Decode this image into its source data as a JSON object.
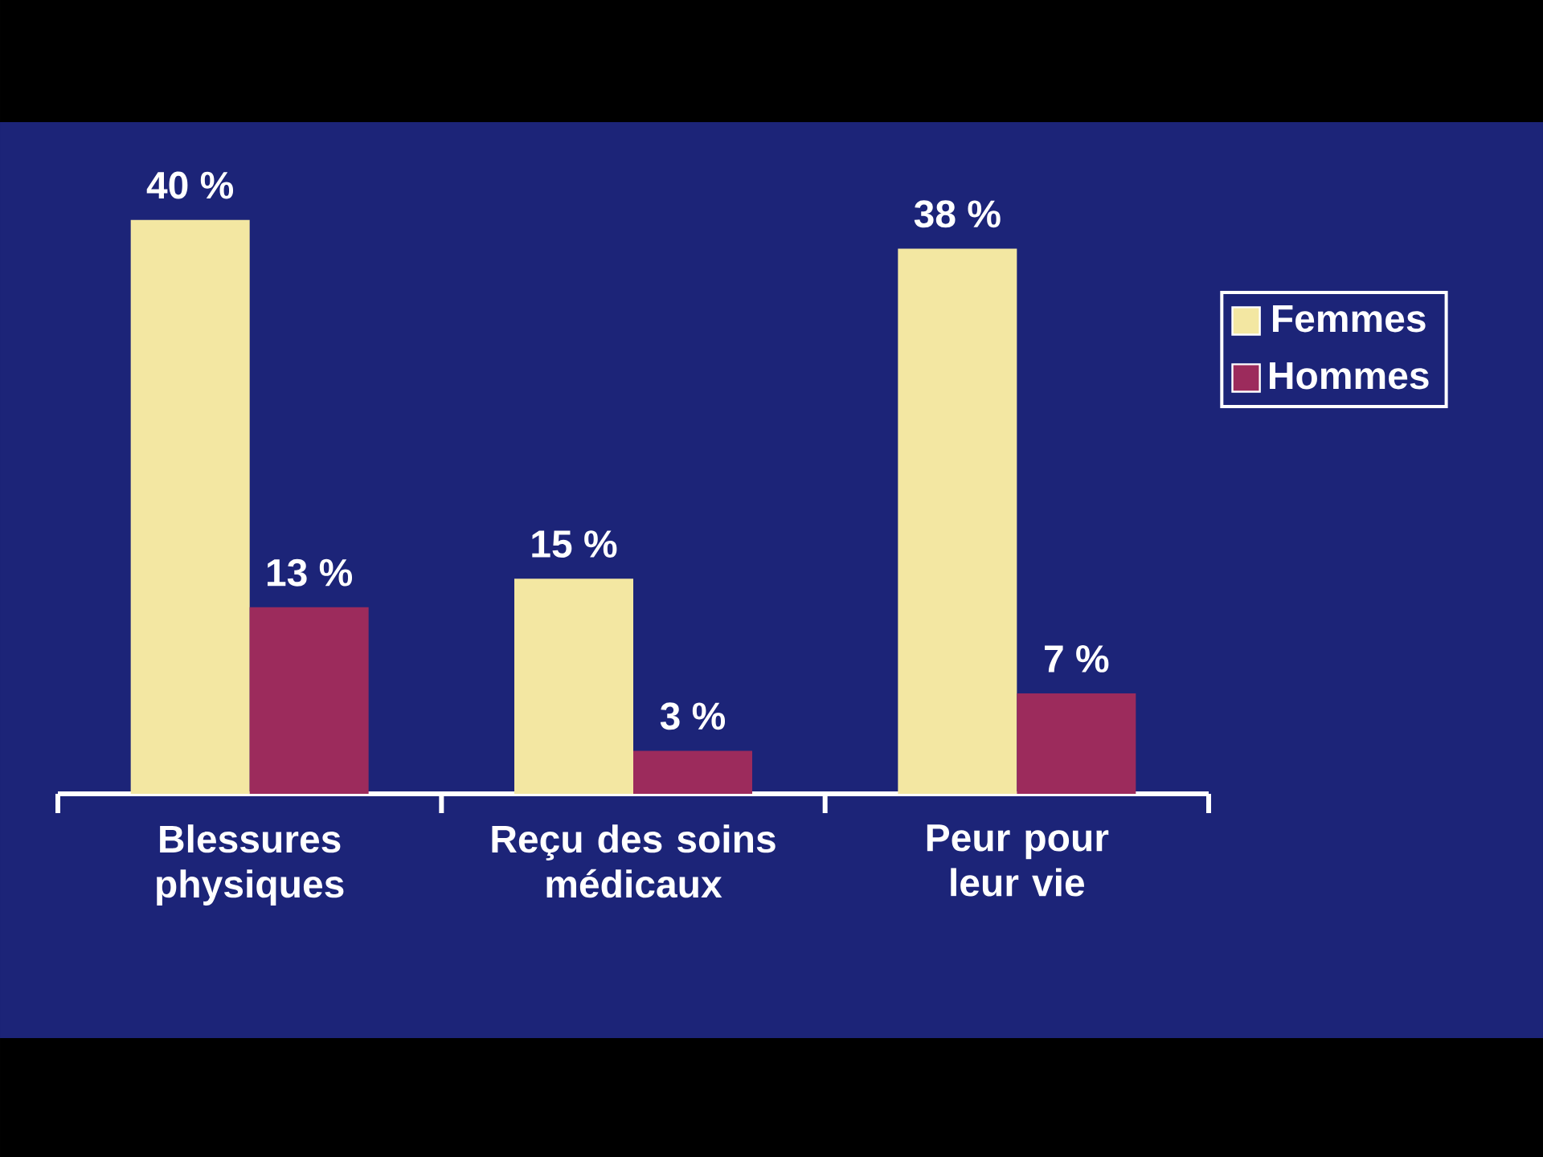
{
  "chart_data": {
    "type": "bar",
    "categories": [
      "Blessures physiques",
      "Reçu des soins médicaux",
      "Peur pour leur vie"
    ],
    "series": [
      {
        "name": "Femmes",
        "color": "#f3e7a2",
        "values": [
          40,
          15,
          38
        ],
        "value_labels": [
          "40 %",
          "15 %",
          "38 %"
        ]
      },
      {
        "name": "Hommes",
        "color": "#9c2b5c",
        "values": [
          13,
          3,
          7
        ],
        "value_labels": [
          "13 %",
          "3 %",
          "7 %"
        ]
      }
    ],
    "legend": "right",
    "grid": false
  }
}
